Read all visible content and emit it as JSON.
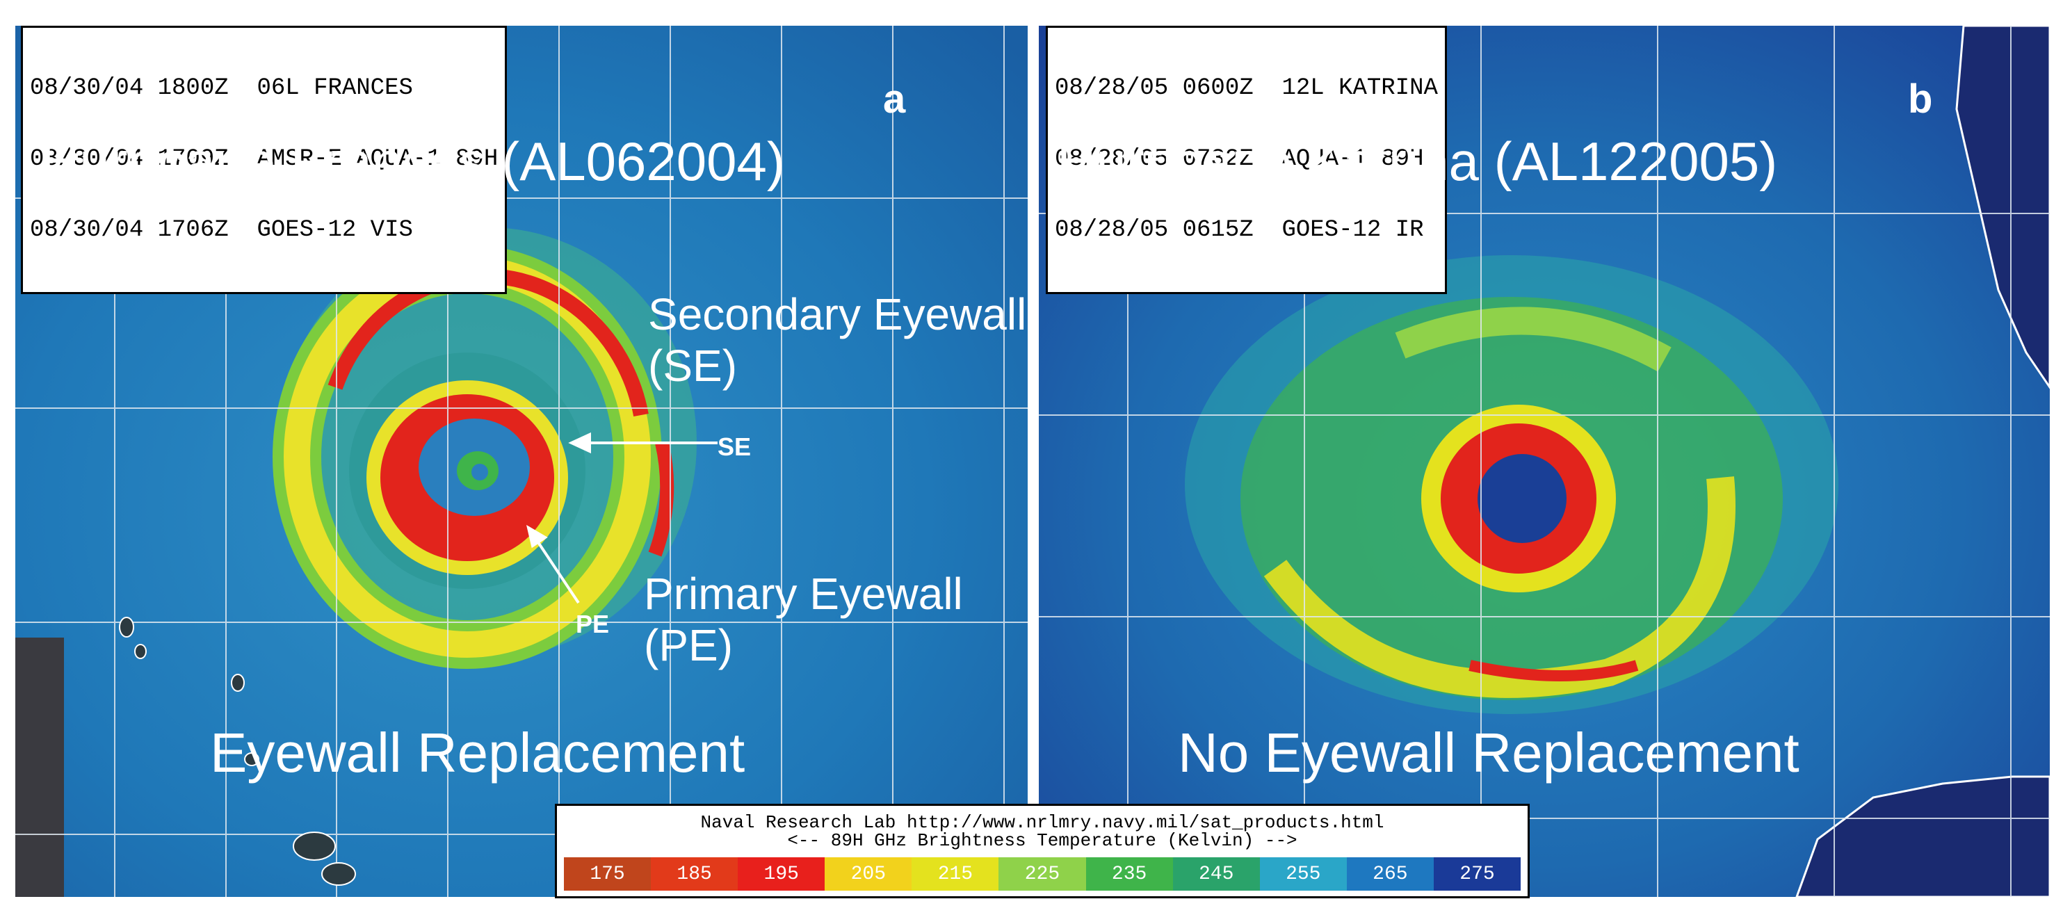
{
  "panel_a": {
    "header_lines": [
      "08/30/04 1800Z  06L FRANCES",
      "08/30/04 1709Z  AMSR-E AQUA-1 89H",
      "08/30/04 1706Z  GOES-12 VIS"
    ],
    "letter": "a",
    "title": "Hurricane Frances (AL062004)",
    "secondary_eyewall_line1": "Secondary Eyewall",
    "secondary_eyewall_line2": "(SE)",
    "se_arrow_label": "SE",
    "primary_eyewall_line1": "Primary Eyewall",
    "primary_eyewall_line2": "(PE)",
    "pe_arrow_label": "PE",
    "bottom_label": "Eyewall Replacement"
  },
  "panel_b": {
    "header_lines": [
      "08/28/05 0600Z  12L KATRINA",
      "08/28/05 0732Z  AQUA-1 89H",
      "08/28/05 0615Z  GOES-12 IR"
    ],
    "letter": "b",
    "title": "Hurricane Katrina (AL122005)",
    "bottom_label": "No Eyewall Replacement"
  },
  "legend": {
    "line1": "Naval Research Lab http://www.nrlmry.navy.mil/sat_products.html",
    "line2": "<--    89H GHz Brightness Temperature (Kelvin)    -->",
    "ticks": [
      {
        "label": "175",
        "color": "#c0451c"
      },
      {
        "label": "185",
        "color": "#e23a1a"
      },
      {
        "label": "195",
        "color": "#e8201c"
      },
      {
        "label": "205",
        "color": "#f2d21c"
      },
      {
        "label": "215",
        "color": "#e4e21e"
      },
      {
        "label": "225",
        "color": "#8fd24a"
      },
      {
        "label": "235",
        "color": "#3fb44a"
      },
      {
        "label": "245",
        "color": "#2aa36a"
      },
      {
        "label": "255",
        "color": "#2aa6c8"
      },
      {
        "label": "265",
        "color": "#1e78c0"
      },
      {
        "label": "275",
        "color": "#1a3a98"
      }
    ]
  }
}
